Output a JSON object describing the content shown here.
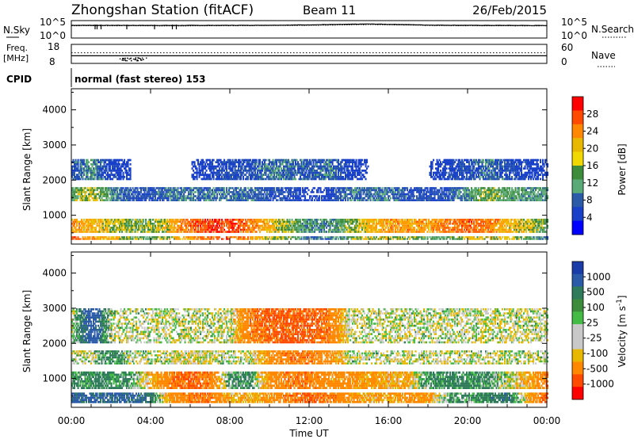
{
  "header": {
    "station": "Zhongshan Station (fitACF)",
    "beam": "Beam 11",
    "date": "26/Feb/2015"
  },
  "top_panels": {
    "nsky": {
      "label": "N.Sky",
      "ticks": [
        "10^5",
        "10^0"
      ]
    },
    "nsearch": {
      "label": "N.Search",
      "ticks": [
        "10^5",
        "10^0"
      ]
    },
    "freq": {
      "label_line1": "Freq.",
      "label_line2": "[MHz]",
      "ticks": [
        "18",
        "8"
      ]
    },
    "nave": {
      "label": "Nave",
      "ticks": [
        "60",
        "0"
      ]
    },
    "cpid": {
      "label": "CPID",
      "value": "normal (fast stereo) 153"
    }
  },
  "panels": {
    "y_label": "Slant Range [km]",
    "y_ticks": [
      "4000",
      "3000",
      "2000",
      "1000"
    ],
    "x_ticks": [
      "00:00",
      "04:00",
      "08:00",
      "12:00",
      "16:00",
      "20:00",
      "00:00"
    ],
    "x_label": "Time UT"
  },
  "colorbars": {
    "power": {
      "title": "Power [dB]",
      "labels": [
        "28",
        "24",
        "20",
        "16",
        "12",
        "8",
        "4"
      ],
      "colors": [
        "#ff0000",
        "#ff4a00",
        "#ff8800",
        "#e8b800",
        "#f0d800",
        "#3c8c3c",
        "#5aaa78",
        "#2a5aa8",
        "#1840c8",
        "#0000ff"
      ]
    },
    "velocity": {
      "title": "Velocity [m s",
      "title_sup": "-1",
      "title_end": "]",
      "labels": [
        "1000",
        "500",
        "100",
        "25",
        "-25",
        "-100",
        "-500",
        "-1000"
      ],
      "colors": [
        "#1a3ca8",
        "#2a5aa8",
        "#2e7a5a",
        "#3c8c3c",
        "#44bb44",
        "#c8c8c8",
        "#c8c8c8",
        "#e8b800",
        "#ff8800",
        "#ff4a00",
        "#ff0000"
      ]
    }
  },
  "chart_data": [
    {
      "type": "line",
      "x": [
        0,
        2,
        4,
        6,
        8,
        10,
        12,
        14,
        15,
        16,
        18,
        20,
        22,
        24
      ],
      "series": [
        {
          "name": "N.Sky",
          "values": [
            12000.0,
            12000.0,
            11000.0,
            11000.0,
            12000.0,
            13000.0,
            18000.0,
            30000.0,
            40000.0,
            30000.0,
            15000.0,
            12000.0,
            11000.0,
            10000.0
          ]
        },
        {
          "name": "N.Search",
          "values": [
            8000.0,
            8000.0,
            7000.0,
            7000.0,
            8000.0,
            9000.0,
            11000.0,
            18000.0,
            22000.0,
            18000.0,
            10000.0,
            8000.0,
            7000.0,
            7000.0
          ]
        }
      ],
      "ylim": [
        1,
        100000
      ],
      "ylog": true
    },
    {
      "type": "line",
      "x": [
        0,
        2,
        2.5,
        3.5,
        4,
        8,
        12,
        16,
        20,
        24
      ],
      "series": [
        {
          "name": "Freq",
          "values": [
            12,
            12,
            10,
            10,
            12,
            12,
            12,
            12,
            12,
            12
          ]
        },
        {
          "name": "Nave",
          "values": [
            30,
            30,
            30,
            30,
            30,
            30,
            30,
            30,
            30,
            30
          ]
        }
      ],
      "ylim": [
        8,
        18
      ]
    },
    {
      "type": "heatmap",
      "quantity": "Power",
      "x": [
        0,
        1,
        2,
        3,
        4,
        5,
        6,
        7,
        8,
        9,
        10,
        11,
        12,
        13,
        14,
        15,
        16,
        17,
        18,
        19,
        20,
        21,
        22,
        23,
        24
      ],
      "bands": [
        {
          "range_km": [
            300,
            400
          ],
          "values": [
            24,
            20,
            18,
            14,
            12,
            16,
            20,
            24,
            24,
            20,
            16,
            14,
            8,
            8,
            12,
            16,
            16,
            14,
            12,
            12,
            16,
            16,
            16,
            12,
            8
          ]
        },
        {
          "range_km": [
            500,
            900
          ],
          "values": [
            20,
            18,
            16,
            14,
            14,
            18,
            24,
            26,
            26,
            22,
            18,
            14,
            10,
            10,
            14,
            18,
            20,
            20,
            20,
            22,
            24,
            22,
            18,
            16,
            12
          ]
        },
        {
          "range_km": [
            1400,
            1800
          ],
          "values": [
            12,
            16,
            10,
            6,
            6,
            8,
            8,
            8,
            8,
            8,
            6,
            6,
            0,
            4,
            8,
            8,
            8,
            6,
            6,
            6,
            10,
            14,
            12,
            10,
            10
          ]
        },
        {
          "range_km": [
            2000,
            2600
          ],
          "values": [
            6,
            10,
            4,
            0,
            0,
            0,
            0,
            4,
            6,
            6,
            8,
            8,
            6,
            8,
            4,
            0,
            0,
            0,
            0,
            4,
            6,
            8,
            6,
            4,
            0
          ]
        }
      ],
      "ylim": [
        180,
        4600
      ],
      "xlim": [
        0,
        24
      ]
    },
    {
      "type": "heatmap",
      "quantity": "Velocity",
      "x": [
        0,
        1,
        2,
        3,
        4,
        5,
        6,
        7,
        8,
        9,
        10,
        11,
        12,
        13,
        14,
        15,
        16,
        17,
        18,
        19,
        20,
        21,
        22,
        23,
        24
      ],
      "bands": [
        {
          "range_km": [
            300,
            600
          ],
          "values": [
            300,
            300,
            300,
            300,
            200,
            -200,
            -300,
            -300,
            -100,
            -100,
            -200,
            -300,
            -400,
            -300,
            -200,
            -100,
            -150,
            -200,
            -150,
            100,
            100,
            150,
            200,
            -100,
            -400
          ]
        },
        {
          "range_km": [
            700,
            1200
          ],
          "values": [
            100,
            150,
            150,
            100,
            -100,
            -300,
            -400,
            -300,
            100,
            100,
            -200,
            -300,
            -300,
            -200,
            -200,
            -150,
            -100,
            -100,
            100,
            150,
            150,
            100,
            0,
            -100,
            -300
          ]
        },
        {
          "range_km": [
            1400,
            1800
          ],
          "values": [
            0,
            0,
            150,
            0,
            0,
            0,
            -50,
            0,
            0,
            0,
            -200,
            -300,
            -300,
            -200,
            0,
            0,
            0,
            0,
            0,
            0,
            0,
            0,
            0,
            0,
            0
          ]
        },
        {
          "range_km": [
            2000,
            3000
          ],
          "values": [
            0,
            400,
            0,
            0,
            0,
            0,
            0,
            0,
            0,
            -300,
            -400,
            -400,
            -400,
            -300,
            0,
            0,
            0,
            0,
            0,
            0,
            0,
            0,
            0,
            0,
            0
          ]
        }
      ],
      "ylim": [
        180,
        4600
      ],
      "xlim": [
        0,
        24
      ]
    }
  ]
}
